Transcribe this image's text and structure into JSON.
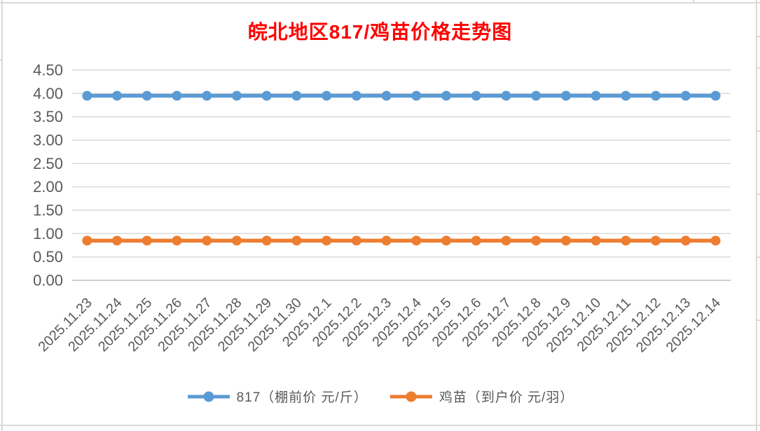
{
  "chart": {
    "title": "皖北地区817/鸡苗价格走势图",
    "title_color": "#FF0000"
  },
  "chart_data": {
    "type": "line",
    "title": "皖北地区817/鸡苗价格走势图",
    "categories": [
      "2025.11.23",
      "2025.11.24",
      "2025.11.25",
      "2025.11.26",
      "2025.11.27",
      "2025.11.28",
      "2025.11.29",
      "2025.11.30",
      "2025.12.1",
      "2025.12.2",
      "2025.12.3",
      "2025.12.4",
      "2025.12.5",
      "2025.12.6",
      "2025.12.7",
      "2025.12.8",
      "2025.12.9",
      "2025.12.10",
      "2025.12.11",
      "2025.12.12",
      "2025.12.13",
      "2025.12.14"
    ],
    "series": [
      {
        "name": "817（棚前价 元/斤）",
        "color": "#5B9BD5",
        "values": [
          3.95,
          3.95,
          3.95,
          3.95,
          3.95,
          3.95,
          3.95,
          3.95,
          3.95,
          3.95,
          3.95,
          3.95,
          3.95,
          3.95,
          3.95,
          3.95,
          3.95,
          3.95,
          3.95,
          3.95,
          3.95,
          3.95
        ]
      },
      {
        "name": "鸡苗（到户价 元/羽）",
        "color": "#ED7D31",
        "values": [
          0.85,
          0.85,
          0.85,
          0.85,
          0.85,
          0.85,
          0.85,
          0.85,
          0.85,
          0.85,
          0.85,
          0.85,
          0.85,
          0.85,
          0.85,
          0.85,
          0.85,
          0.85,
          0.85,
          0.85,
          0.85,
          0.85
        ]
      }
    ],
    "xlabel": "",
    "ylabel": "",
    "ylim": [
      0,
      4.5
    ],
    "y_ticks": [
      "0.00",
      "0.50",
      "1.00",
      "1.50",
      "2.00",
      "2.50",
      "3.00",
      "3.50",
      "4.00",
      "4.50"
    ],
    "grid": "horizontal",
    "legend_position": "bottom",
    "marker": "circle",
    "colors": {
      "gridline": "#D9D9D9",
      "axis_line": "#BFBFBF",
      "axis_text": "#595959"
    }
  }
}
